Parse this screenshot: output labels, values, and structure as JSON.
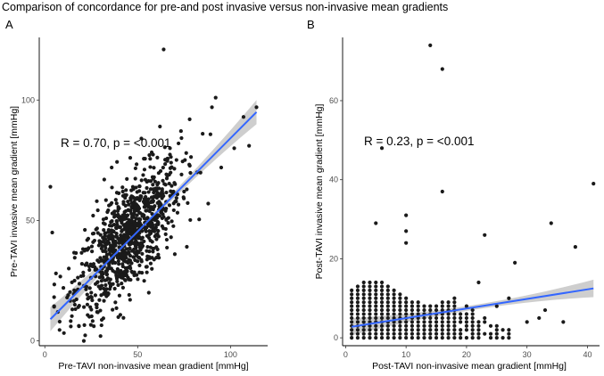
{
  "figure_title": "Comparison of concordance for pre-and post invasive versus non-invasive mean gradients",
  "colors": {
    "points": "#1a1a1a",
    "fit_line": "#3366ff",
    "confidence_band": "#bdbdbd",
    "axis": "#000000"
  },
  "chart_data": [
    {
      "panel_label": "A",
      "type": "scatter",
      "xlabel": "Pre-TAVI non-invasive mean gradient [mmHg]",
      "ylabel": "Pre-TAVI invasive mean gradient [mmHg]",
      "xlim": [
        -3,
        120
      ],
      "ylim": [
        -2,
        126
      ],
      "xticks": [
        0,
        50,
        100
      ],
      "yticks": [
        0,
        50,
        100
      ],
      "annotation": "R = 0.70, p = <0.001",
      "grid": false,
      "fit": {
        "x0": 3,
        "y0": 9,
        "x1": 114,
        "y1": 95
      },
      "points": [
        [
          3,
          64
        ],
        [
          4,
          45
        ],
        [
          6,
          28
        ],
        [
          7,
          12
        ],
        [
          8,
          8
        ],
        [
          10,
          22
        ],
        [
          12,
          18
        ],
        [
          14,
          6
        ],
        [
          16,
          25
        ],
        [
          18,
          14
        ],
        [
          20,
          32
        ],
        [
          21,
          0
        ],
        [
          22,
          38
        ],
        [
          24,
          10
        ],
        [
          25,
          20
        ],
        [
          26,
          52
        ],
        [
          28,
          58
        ],
        [
          30,
          2
        ],
        [
          30,
          44
        ],
        [
          32,
          67
        ],
        [
          34,
          26
        ],
        [
          36,
          72
        ],
        [
          38,
          16
        ],
        [
          40,
          55
        ],
        [
          42,
          62
        ],
        [
          44,
          30
        ],
        [
          46,
          76
        ],
        [
          48,
          38
        ],
        [
          50,
          48
        ],
        [
          52,
          84
        ],
        [
          55,
          58
        ],
        [
          56,
          20
        ],
        [
          58,
          68
        ],
        [
          60,
          44
        ],
        [
          62,
          89
        ],
        [
          64,
          121
        ],
        [
          65,
          54
        ],
        [
          68,
          74
        ],
        [
          70,
          36
        ],
        [
          72,
          82
        ],
        [
          75,
          62
        ],
        [
          78,
          92
        ],
        [
          82,
          70
        ],
        [
          85,
          86
        ],
        [
          88,
          57
        ],
        [
          90,
          97
        ],
        [
          92,
          101
        ],
        [
          95,
          72
        ],
        [
          102,
          80
        ],
        [
          107,
          93
        ],
        [
          110,
          81
        ],
        [
          114,
          97
        ]
      ],
      "dense_cloud": {
        "x_center": 45,
        "y_center": 43,
        "count": 900,
        "slope": 0.77,
        "spread_x": 14,
        "spread_y": 11
      }
    },
    {
      "panel_label": "B",
      "type": "scatter",
      "xlabel": "Post-TAVI non-invasive mean gradient [mmHg]",
      "ylabel": "Post-TAVI invasive mean gradient [mmHg]",
      "xlim": [
        -0.5,
        42
      ],
      "ylim": [
        -2,
        76
      ],
      "xticks": [
        0,
        10,
        20,
        30,
        40
      ],
      "yticks": [
        0,
        20,
        40,
        60
      ],
      "annotation": "R = 0.23, p = <0.001",
      "grid": false,
      "fit": {
        "x0": 1,
        "y0": 2.8,
        "x1": 41,
        "y1": 12.5
      },
      "points": [
        [
          5,
          29
        ],
        [
          6,
          48
        ],
        [
          10,
          31
        ],
        [
          10,
          24
        ],
        [
          10,
          27
        ],
        [
          14,
          74
        ],
        [
          16,
          68
        ],
        [
          16,
          37
        ],
        [
          23,
          26
        ],
        [
          28,
          19
        ],
        [
          32,
          5
        ],
        [
          33,
          7
        ],
        [
          34,
          29
        ],
        [
          36,
          4
        ],
        [
          38,
          23
        ],
        [
          41,
          39
        ],
        [
          25,
          8
        ],
        [
          27,
          10
        ],
        [
          22,
          14
        ],
        [
          30,
          4
        ]
      ],
      "grid_cloud": {
        "x_min": 1,
        "x_max": 27,
        "y_max_base": 11
      }
    }
  ]
}
